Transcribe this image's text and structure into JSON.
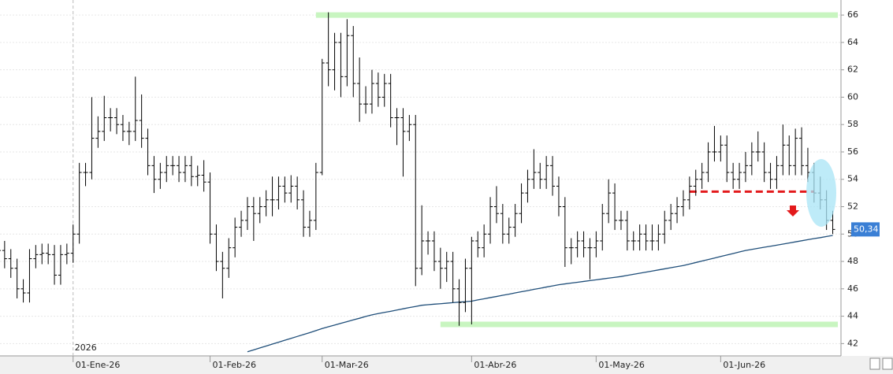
{
  "chart_data": {
    "type": "ohlc",
    "color": "#000000",
    "categories": [
      null,
      null,
      null,
      null,
      null,
      null,
      null,
      null,
      null,
      null,
      null,
      null,
      null,
      null,
      null,
      null,
      null,
      null,
      null,
      null,
      null,
      null,
      null,
      null,
      null,
      null,
      null,
      null,
      null,
      null,
      null,
      null,
      null,
      null,
      null,
      null,
      null,
      null,
      null,
      null,
      null,
      null,
      null,
      null,
      null,
      null,
      null,
      null,
      null,
      null,
      null,
      null,
      null,
      null,
      null,
      null,
      null,
      null,
      null,
      null,
      null,
      null,
      null,
      null,
      null,
      null,
      null,
      null,
      null,
      null,
      null,
      null,
      null,
      null,
      null,
      null,
      null,
      null,
      null,
      null,
      null,
      null,
      null,
      null,
      null,
      null,
      null,
      null,
      null,
      null,
      null,
      null,
      null,
      null,
      null,
      null,
      null,
      null,
      null,
      null,
      null,
      null,
      null,
      null,
      null,
      null,
      null,
      null,
      null,
      null,
      null,
      null,
      null,
      null,
      null,
      null,
      null,
      null,
      null,
      null,
      null,
      null,
      null,
      null,
      null,
      null,
      null,
      null,
      null,
      null,
      null,
      null,
      null,
      null,
      null
    ],
    "open": [
      49,
      48.8,
      48.2,
      47.5,
      46,
      45.7,
      48.2,
      48.5,
      48.6,
      48.5,
      47,
      48.5,
      48.6,
      50,
      54.5,
      54.5,
      57,
      57.5,
      58.5,
      58.5,
      58,
      57.5,
      57.5,
      58.3,
      57,
      55,
      54,
      54.5,
      55,
      55,
      54.5,
      55,
      54.2,
      54.3,
      53.8,
      50,
      48,
      47.5,
      49,
      50.5,
      51,
      52,
      51.5,
      52,
      52.5,
      52.5,
      53.5,
      53,
      53.5,
      52.5,
      50.5,
      51,
      54.5,
      62.5,
      62,
      64,
      61.5,
      64.5,
      61,
      59.5,
      59.5,
      61,
      60,
      61,
      58.5,
      58.5,
      57.5,
      58,
      47.5,
      49.5,
      49.5,
      48,
      47.5,
      48,
      46,
      45,
      47.5,
      49.5,
      49,
      50,
      52,
      51.5,
      50,
      50.5,
      51.5,
      53,
      54,
      54.5,
      54,
      55,
      53.5,
      52,
      49,
      49,
      49.5,
      49,
      49,
      49.5,
      51.5,
      53,
      51,
      51,
      49.5,
      49.5,
      50,
      49.5,
      49.5,
      50,
      51,
      51.5,
      52,
      52.5,
      53.5,
      54,
      54.5,
      56,
      56,
      56.5,
      54.5,
      54,
      54.5,
      55,
      56,
      56,
      54.5,
      54,
      55,
      56.5,
      55,
      57,
      55,
      54.5,
      53,
      52.5,
      51
    ],
    "high": [
      49.7,
      49.5,
      48.9,
      48.2,
      46.7,
      48.9,
      49.2,
      49.3,
      49.3,
      49.2,
      49.2,
      49.3,
      50.7,
      55.2,
      55.2,
      60,
      58.6,
      60.1,
      59.2,
      59.2,
      58.7,
      58.2,
      61.5,
      60.2,
      57.7,
      55.7,
      55.2,
      55.7,
      55.7,
      55.7,
      55.7,
      55.7,
      55,
      55.4,
      54.5,
      50.7,
      48.7,
      49.7,
      51.2,
      51.7,
      52.7,
      52.7,
      52.7,
      53.2,
      54.2,
      54.2,
      54.2,
      54.3,
      54.2,
      53.2,
      51.7,
      55.2,
      62.8,
      66.2,
      64.7,
      64.7,
      65.7,
      65.2,
      62.9,
      60.8,
      62,
      61.8,
      61.7,
      61.7,
      59.2,
      59.2,
      58.7,
      58.7,
      52.1,
      50.2,
      50.2,
      49,
      48.7,
      48.7,
      46.7,
      48.2,
      49.8,
      50.2,
      50.7,
      52.7,
      53.5,
      52.2,
      51.2,
      52.2,
      53.7,
      54.7,
      56.2,
      55.2,
      55.7,
      55.7,
      54.2,
      52.7,
      49.7,
      50.2,
      50.2,
      49.7,
      50.2,
      52.2,
      54,
      53.7,
      51.7,
      51.7,
      50.2,
      50.7,
      50.7,
      50.7,
      50.7,
      51.7,
      52.2,
      52.7,
      53.2,
      54.2,
      54.7,
      55.2,
      56.7,
      57.9,
      57.2,
      57.2,
      55.2,
      55.2,
      56,
      56.7,
      57.5,
      56.7,
      55.2,
      55.7,
      58,
      57.2,
      57.7,
      57.8,
      56.3,
      55.2,
      54.2,
      53.2,
      51.7
    ],
    "low": [
      48.1,
      47.5,
      46.8,
      45.3,
      45,
      45,
      47.5,
      47.8,
      47.8,
      46.3,
      46.3,
      47.8,
      47.9,
      49.3,
      53.5,
      54,
      56.3,
      56.8,
      57.5,
      57.3,
      56.8,
      56.5,
      56.8,
      56.3,
      54.3,
      53,
      53.3,
      53.8,
      54.3,
      53.8,
      53.8,
      53.5,
      53.5,
      53.1,
      49.3,
      47.3,
      45.3,
      46.8,
      48.3,
      49.8,
      50.3,
      49.5,
      50.8,
      51.3,
      51.3,
      51.8,
      52.3,
      52.3,
      51.8,
      49.8,
      49.8,
      50.3,
      54.3,
      60.8,
      60.5,
      60,
      60.8,
      60,
      58.2,
      58.8,
      58.8,
      59.3,
      59.3,
      57.8,
      56.5,
      54.2,
      56.8,
      46.2,
      47,
      48.5,
      47.3,
      46,
      46.5,
      45,
      43.3,
      44.3,
      43.4,
      48.3,
      48.3,
      49.3,
      50.8,
      49.3,
      49.3,
      49.8,
      50.8,
      52.3,
      53.3,
      53.3,
      53.3,
      52.8,
      51.3,
      47.6,
      47.8,
      48.3,
      48.3,
      46.7,
      48.3,
      48.8,
      50.8,
      50.3,
      50.3,
      48.8,
      48.8,
      48.8,
      48.8,
      48.8,
      48.8,
      49.3,
      50.3,
      50.8,
      51.3,
      51.8,
      52.8,
      53.3,
      53.8,
      55.3,
      55.3,
      53.8,
      53.3,
      53.3,
      53.8,
      54.3,
      55.3,
      53.8,
      53.3,
      53.3,
      54.3,
      54.3,
      54.3,
      54.3,
      53.8,
      52.3,
      51.8,
      50.3,
      50
    ],
    "close": [
      48.8,
      48.2,
      47.5,
      46,
      45.7,
      48.2,
      48.5,
      48.6,
      48.5,
      47,
      48.5,
      48.6,
      50,
      54.5,
      54.5,
      57,
      57.5,
      58.5,
      58.5,
      58,
      57.5,
      57.5,
      58.3,
      57,
      55,
      54,
      54.5,
      55,
      55,
      54.5,
      55,
      54.2,
      54.3,
      53.8,
      50,
      48,
      47.5,
      49,
      50.5,
      51,
      52,
      51.5,
      52,
      52.5,
      52.5,
      53.5,
      53,
      53.5,
      52.5,
      50.5,
      51,
      54.5,
      62.5,
      62,
      64,
      61.5,
      64.5,
      61,
      59.5,
      59.5,
      61,
      60,
      61,
      58.5,
      58.5,
      57.5,
      58,
      47.5,
      49.5,
      49.5,
      48,
      47.5,
      48,
      46,
      45,
      47.5,
      49.5,
      49,
      50,
      52,
      51.5,
      50,
      50.5,
      51.5,
      53,
      54,
      54.5,
      54,
      55,
      53.5,
      52,
      49,
      49,
      49.5,
      49,
      49,
      49.5,
      51.5,
      53,
      51,
      51,
      49.5,
      49.5,
      50,
      49.5,
      49.5,
      50,
      51,
      51.5,
      52,
      52.5,
      53.5,
      54,
      54.5,
      56,
      56,
      56.5,
      54.5,
      54,
      54.5,
      55,
      56,
      56,
      54.5,
      54,
      55,
      56.5,
      55,
      57,
      55,
      54.5,
      53,
      52.5,
      51,
      50.34
    ],
    "moving_average": {
      "color": "#1f4e79",
      "values": [
        null,
        null,
        null,
        null,
        null,
        null,
        null,
        null,
        null,
        null,
        null,
        null,
        null,
        null,
        null,
        null,
        null,
        null,
        null,
        null,
        null,
        null,
        null,
        null,
        null,
        null,
        null,
        null,
        null,
        null,
        null,
        null,
        null,
        null,
        null,
        null,
        null,
        null,
        null,
        null,
        41.4,
        41.54,
        41.68,
        41.82,
        41.96,
        42.1,
        42.24,
        42.38,
        42.52,
        42.66,
        42.8,
        42.95,
        43.1,
        43.23,
        43.35,
        43.48,
        43.6,
        43.73,
        43.85,
        43.98,
        44.1,
        44.19,
        44.28,
        44.36,
        44.45,
        44.54,
        44.63,
        44.71,
        44.8,
        44.84,
        44.88,
        44.91,
        44.95,
        44.99,
        45.03,
        45.06,
        45.1,
        45.19,
        45.27,
        45.36,
        45.44,
        45.53,
        45.61,
        45.7,
        45.79,
        45.87,
        45.96,
        46.04,
        46.13,
        46.21,
        46.3,
        46.36,
        46.42,
        46.48,
        46.54,
        46.6,
        46.66,
        46.72,
        46.78,
        46.84,
        46.9,
        46.98,
        47.06,
        47.14,
        47.22,
        47.3,
        47.38,
        47.46,
        47.54,
        47.62,
        47.7,
        47.81,
        47.92,
        48.03,
        48.14,
        48.25,
        48.36,
        48.47,
        48.58,
        48.69,
        48.8,
        48.88,
        48.96,
        49.04,
        49.11,
        49.19,
        49.27,
        49.35,
        49.43,
        49.51,
        49.59,
        49.67,
        49.74,
        49.82,
        49.9
      ]
    },
    "levels": [
      {
        "value": 66,
        "from": 51,
        "color": "#c8f5c0"
      },
      {
        "value": 43.4,
        "from": 71,
        "color": "#c8f5c0"
      },
      {
        "value": 53.1,
        "from": 111,
        "to": 131,
        "color": "#e31a1c",
        "dashed": true
      }
    ],
    "last_price": {
      "value": 50.34,
      "label": "50,34",
      "color": "#3a7fd5"
    },
    "year_label": {
      "value": 12,
      "label": "2026"
    },
    "ylim": [
      41.1,
      67.1
    ],
    "yticks": [
      42,
      44,
      46,
      48,
      50,
      52,
      54,
      56,
      58,
      60,
      62,
      64,
      66
    ],
    "xticks": [
      {
        "value": 12,
        "label": "01-Ene-26"
      },
      {
        "value": 34,
        "label": "01-Feb-26"
      },
      {
        "value": 52,
        "label": "01-Mar-26"
      },
      {
        "value": 76,
        "label": "01-Abr-26"
      },
      {
        "value": 96,
        "label": "01-May-26"
      },
      {
        "value": 116,
        "label": "01-Jun-26"
      }
    ],
    "grid": true
  }
}
